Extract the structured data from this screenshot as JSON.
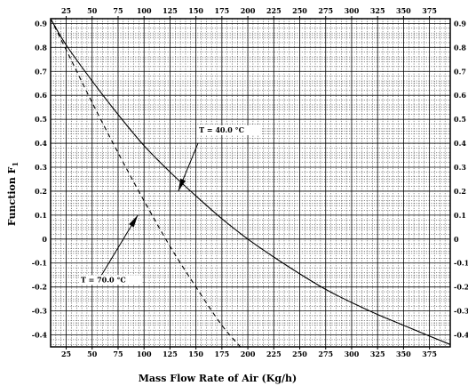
{
  "chart_data": {
    "type": "line",
    "xlabel": "Mass Flow Rate of Air (Kg/h)",
    "ylabel": "Function F",
    "ylabel_subscript": "1",
    "xlim": [
      10,
      395
    ],
    "ylim": [
      -0.45,
      0.92
    ],
    "x_ticks": [
      25,
      50,
      75,
      100,
      125,
      150,
      175,
      200,
      225,
      250,
      275,
      300,
      325,
      350,
      375
    ],
    "y_ticks": [
      0.9,
      0.8,
      0.7,
      0.6,
      0.5,
      0.4,
      0.3,
      0.2,
      0.1,
      0,
      -0.1,
      -0.2,
      -0.3,
      -0.4
    ],
    "y_tick_labels": [
      "0.9",
      "0.8",
      "0.7",
      "0.6",
      "0.5",
      "0.4",
      "0.3",
      "0.2",
      "0.1",
      "0",
      "-0.1",
      "-0.2",
      "-0.3",
      "-0.4"
    ],
    "grid": true,
    "series": [
      {
        "style": "solid",
        "x": [
          10,
          25,
          50,
          75,
          100,
          125,
          150,
          175,
          200,
          225,
          250,
          275,
          300,
          325,
          350,
          375,
          395
        ],
        "y": [
          0.92,
          0.81,
          0.66,
          0.52,
          0.39,
          0.28,
          0.18,
          0.085,
          0.0,
          -0.075,
          -0.145,
          -0.21,
          -0.265,
          -0.315,
          -0.36,
          -0.405,
          -0.44
        ]
      },
      {
        "style": "dashed",
        "x": [
          10,
          25,
          50,
          75,
          100,
          125,
          150,
          175,
          195
        ],
        "y": [
          0.92,
          0.79,
          0.57,
          0.36,
          0.16,
          -0.03,
          -0.2,
          -0.36,
          -0.46
        ]
      }
    ],
    "annotations": [
      {
        "label": "T    = 40.0 °C",
        "text_at": [
          153,
          0.445
        ],
        "arrow_from": [
          152,
          0.4
        ],
        "arrow_to": [
          133,
          0.2
        ]
      },
      {
        "label": "T    = 70.0 °C",
        "text_at": [
          39,
          -0.18
        ],
        "arrow_from": [
          57,
          -0.165
        ],
        "arrow_to": [
          94,
          0.1
        ]
      }
    ]
  }
}
